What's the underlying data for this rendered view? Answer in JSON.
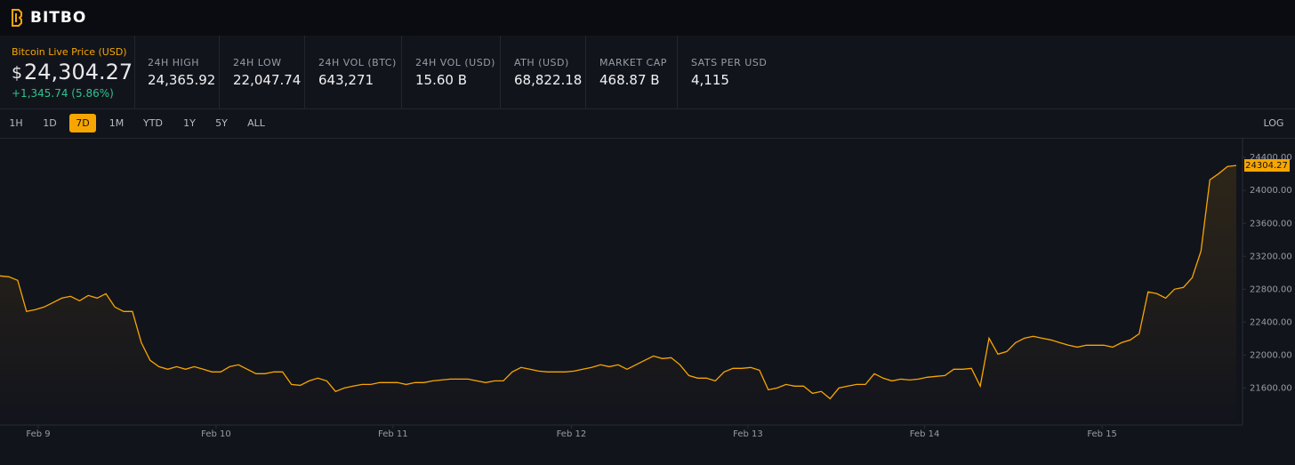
{
  "header": {
    "logo": "BITBO"
  },
  "price_panel": {
    "label": "Bitcoin Live Price (USD)",
    "currency_symbol": "$",
    "price": "24,304.27",
    "change": "+1,345.74 (5.86%)"
  },
  "stats": [
    {
      "label": "24H HIGH",
      "value": "24,365.92"
    },
    {
      "label": "24H LOW",
      "value": "22,047.74"
    },
    {
      "label": "24H VOL (BTC)",
      "value": "643,271"
    },
    {
      "label": "24H VOL (USD)",
      "value": "15.60 B"
    },
    {
      "label": "ATH (USD)",
      "value": "68,822.18"
    },
    {
      "label": "MARKET CAP",
      "value": "468.87 B"
    },
    {
      "label": "SATS PER USD",
      "value": "4,115"
    }
  ],
  "timeframes": {
    "options": [
      "1H",
      "1D",
      "7D",
      "1M",
      "YTD",
      "1Y",
      "5Y",
      "ALL"
    ],
    "active": "7D",
    "log_toggle": "LOG"
  },
  "chart_data": {
    "type": "line",
    "color": "#f7a600",
    "grid": false,
    "values": [
      22962,
      22951,
      22908,
      22530,
      22551,
      22584,
      22638,
      22692,
      22713,
      22659,
      22724,
      22692,
      22746,
      22584,
      22530,
      22530,
      22151,
      21935,
      21859,
      21827,
      21859,
      21827,
      21859,
      21827,
      21795,
      21795,
      21859,
      21881,
      21827,
      21773,
      21773,
      21795,
      21795,
      21643,
      21632,
      21686,
      21719,
      21686,
      21557,
      21600,
      21622,
      21643,
      21643,
      21665,
      21665,
      21665,
      21643,
      21665,
      21665,
      21686,
      21697,
      21708,
      21708,
      21708,
      21686,
      21665,
      21686,
      21686,
      21795,
      21849,
      21827,
      21805,
      21795,
      21795,
      21795,
      21805,
      21827,
      21849,
      21881,
      21859,
      21881,
      21827,
      21881,
      21935,
      21989,
      21957,
      21968,
      21881,
      21751,
      21719,
      21719,
      21686,
      21795,
      21838,
      21838,
      21849,
      21816,
      21578,
      21600,
      21643,
      21622,
      21622,
      21535,
      21557,
      21470,
      21600,
      21622,
      21643,
      21643,
      21773,
      21719,
      21686,
      21708,
      21697,
      21708,
      21730,
      21741,
      21751,
      21827,
      21827,
      21838,
      21622,
      22205,
      22011,
      22043,
      22151,
      22205,
      22227,
      22205,
      22184,
      22151,
      22119,
      22097,
      22119,
      22119,
      22119,
      22097,
      22151,
      22184,
      22259,
      22767,
      22746,
      22692,
      22800,
      22822,
      22940,
      23265,
      24130,
      24205,
      24292,
      24304
    ],
    "xlim": [
      0,
      140.7
    ],
    "xticks": [
      {
        "value": 4.33,
        "label": "Feb 9"
      },
      {
        "value": 24.47,
        "label": "Feb 10"
      },
      {
        "value": 44.5,
        "label": "Feb 11"
      },
      {
        "value": 64.7,
        "label": "Feb 12"
      },
      {
        "value": 84.7,
        "label": "Feb 13"
      },
      {
        "value": 104.7,
        "label": "Feb 14"
      },
      {
        "value": 124.8,
        "label": "Feb 15"
      }
    ],
    "ylim": [
      21150,
      24640
    ],
    "yticks": [
      {
        "value": 21600,
        "label": "21600.00"
      },
      {
        "value": 22000,
        "label": "22000.00"
      },
      {
        "value": 22400,
        "label": "22400.00"
      },
      {
        "value": 22800,
        "label": "22800.00"
      },
      {
        "value": 23200,
        "label": "23200.00"
      },
      {
        "value": 23600,
        "label": "23600.00"
      },
      {
        "value": 24000,
        "label": "24000.00"
      },
      {
        "value": 24400,
        "label": "24400.00"
      }
    ],
    "last_price": {
      "value": 24304.27,
      "label": "24304.27"
    }
  }
}
